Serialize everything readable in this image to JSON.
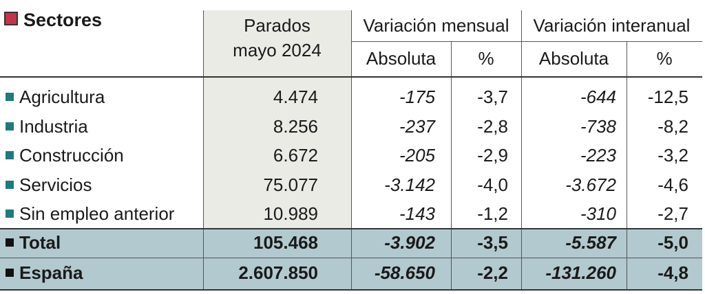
{
  "header": {
    "title": "Sectores",
    "parados": [
      "Parados",
      "mayo 2024"
    ],
    "mensual": "Variación mensual",
    "interanual": "Variación interanual",
    "subheaders": [
      "Absoluta",
      "%",
      "Absoluta",
      "%"
    ]
  },
  "table": {
    "rows": [
      [
        "Agricultura",
        "4.474",
        "-175",
        "-3,7",
        "-644",
        "-12,5"
      ],
      [
        "Industria",
        "8.256",
        "-237",
        "-2,8",
        "-738",
        "-8,2"
      ],
      [
        "Construcción",
        "6.672",
        "-205",
        "-2,9",
        "-223",
        "-3,2"
      ],
      [
        "Servicios",
        "75.077",
        "-3.142",
        "-4,0",
        "-3.672",
        "-4,6"
      ],
      [
        "Sin empleo anterior",
        "10.989",
        "-143",
        "-1,2",
        "-310",
        "-2,7"
      ]
    ],
    "totals": [
      [
        "Total",
        "105.468",
        "-3.902",
        "-3,5",
        "-5.587",
        "-5,0"
      ],
      [
        "España",
        "2.607.850",
        "-58.650",
        "-2,2",
        "-131.260",
        "-4,8"
      ]
    ]
  }
}
